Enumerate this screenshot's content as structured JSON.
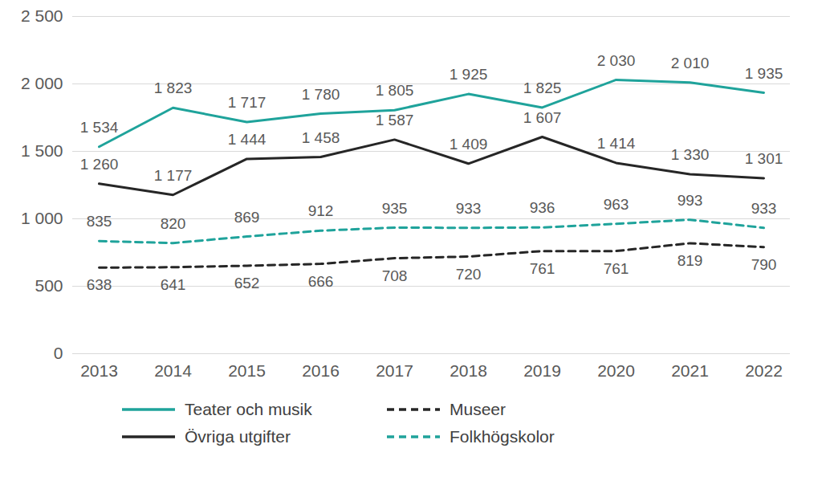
{
  "chart_data": {
    "type": "line",
    "categories": [
      "2013",
      "2014",
      "2015",
      "2016",
      "2017",
      "2018",
      "2019",
      "2020",
      "2021",
      "2022"
    ],
    "series": [
      {
        "name": "Teater och musik",
        "color": "#1fa39b",
        "line_style": "solid",
        "values": [
          1534,
          1823,
          1717,
          1780,
          1805,
          1925,
          1825,
          2030,
          2010,
          1935
        ],
        "value_labels": [
          "1 534",
          "1 823",
          "1 717",
          "1 780",
          "1 805",
          "1 925",
          "1 825",
          "2 030",
          "2 010",
          "1 935"
        ]
      },
      {
        "name": "Museer",
        "color": "#262626",
        "line_style": "dashed",
        "values": [
          638,
          641,
          652,
          666,
          708,
          720,
          761,
          761,
          819,
          790
        ],
        "value_labels": [
          "638",
          "641",
          "652",
          "666",
          "708",
          "720",
          "761",
          "761",
          "819",
          "790"
        ]
      },
      {
        "name": "Övriga utgifter",
        "color": "#262626",
        "line_style": "solid",
        "values": [
          1260,
          1177,
          1444,
          1458,
          1587,
          1409,
          1607,
          1414,
          1330,
          1301
        ],
        "value_labels": [
          "1 260",
          "1 177",
          "1 444",
          "1 458",
          "1 587",
          "1 409",
          "1 607",
          "1 414",
          "1 330",
          "1 301"
        ]
      },
      {
        "name": "Folkhögskolor",
        "color": "#1fa39b",
        "line_style": "dashed",
        "values": [
          835,
          820,
          869,
          912,
          935,
          933,
          936,
          963,
          993,
          933
        ],
        "value_labels": [
          "835",
          "820",
          "869",
          "912",
          "935",
          "933",
          "936",
          "963",
          "993",
          "933"
        ]
      }
    ],
    "ylim": [
      0,
      2500
    ],
    "yticks": [
      0,
      500,
      {
        "value": 1000,
        "label": "1 000"
      },
      {
        "value": 1500,
        "label": "1 500"
      },
      {
        "value": 2000,
        "label": "2 000"
      },
      {
        "value": 2500,
        "label": "2 500"
      }
    ],
    "grid": true,
    "data_labels": true,
    "legend": "bottom"
  }
}
